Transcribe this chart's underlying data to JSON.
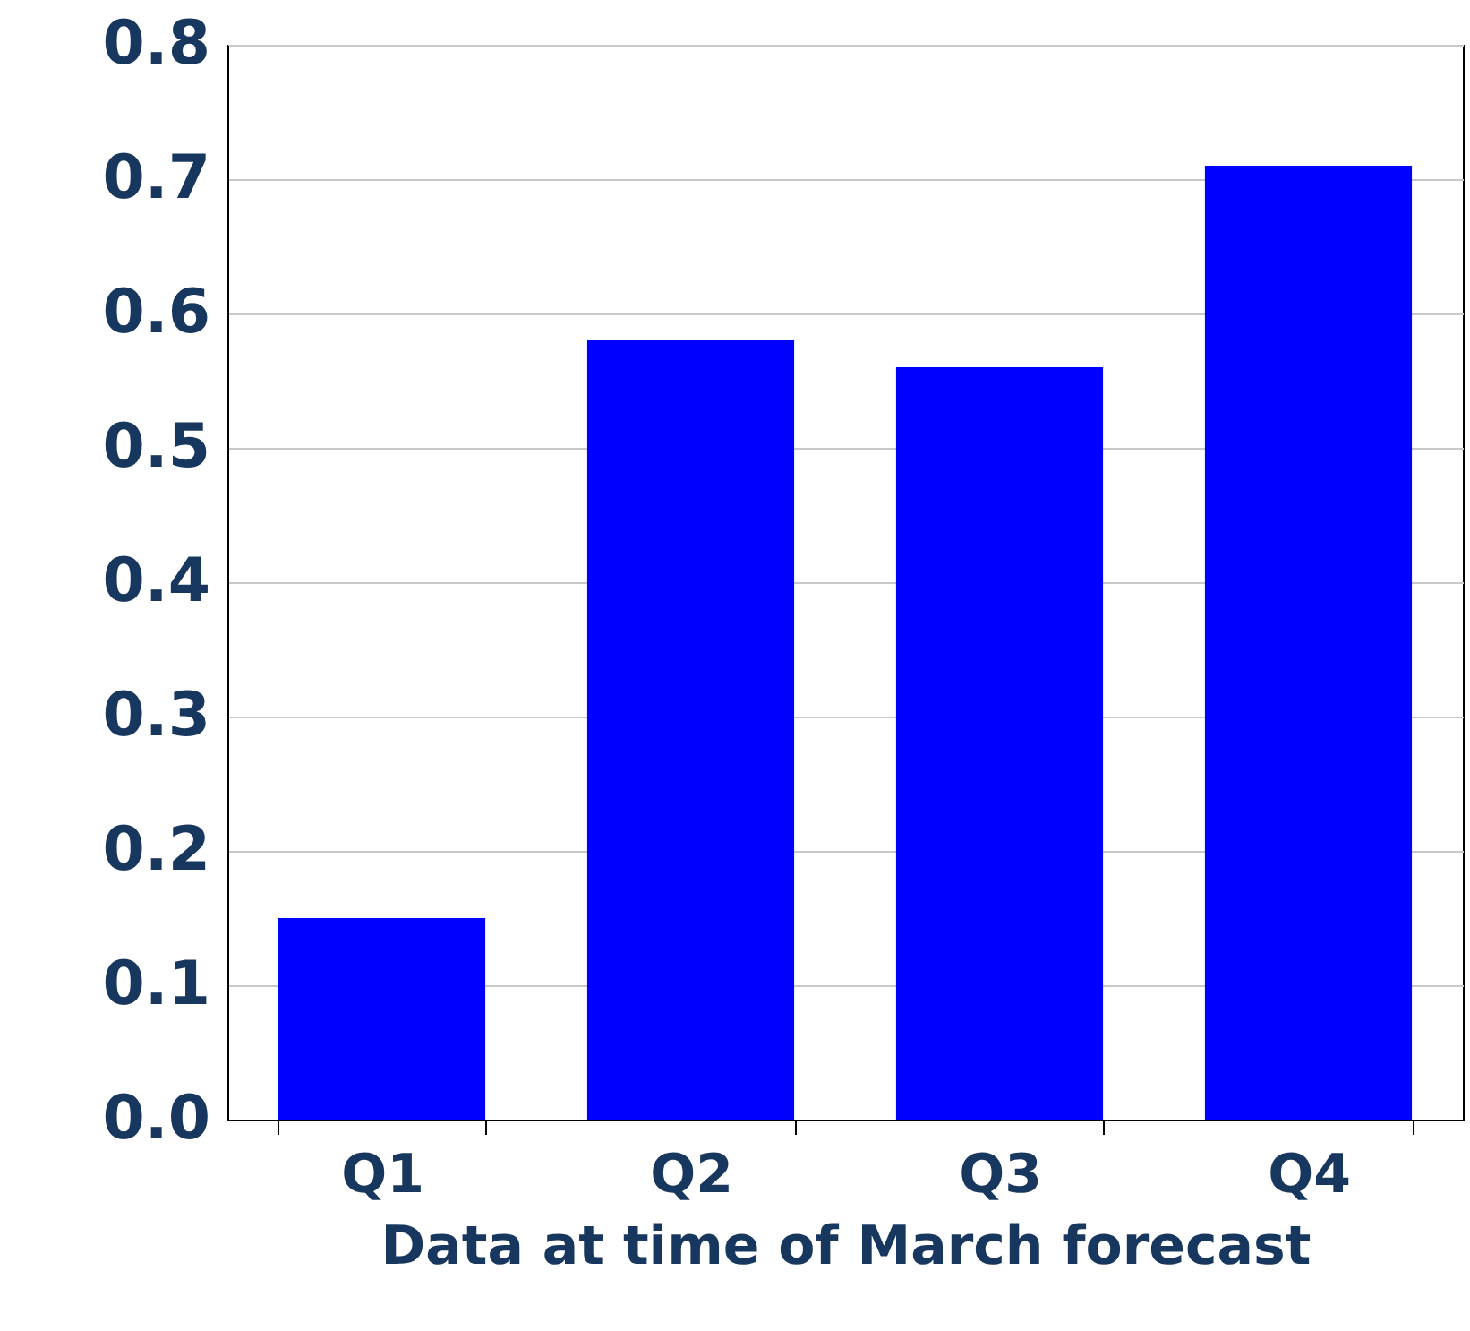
{
  "chart_data": {
    "type": "bar",
    "xlabel": "Data at time of March forecast",
    "categories": [
      "Q1",
      "Q2",
      "Q3",
      "Q4"
    ],
    "values": [
      0.15,
      0.58,
      0.56,
      0.71
    ],
    "color": "#0000ff",
    "ylim": [
      0,
      0.8
    ],
    "yticks": [
      {
        "value": 0,
        "label": "0.0"
      },
      0.1,
      0.2,
      0.3,
      0.4,
      0.5,
      0.6,
      0.7,
      0.8
    ],
    "grid": "y"
  }
}
